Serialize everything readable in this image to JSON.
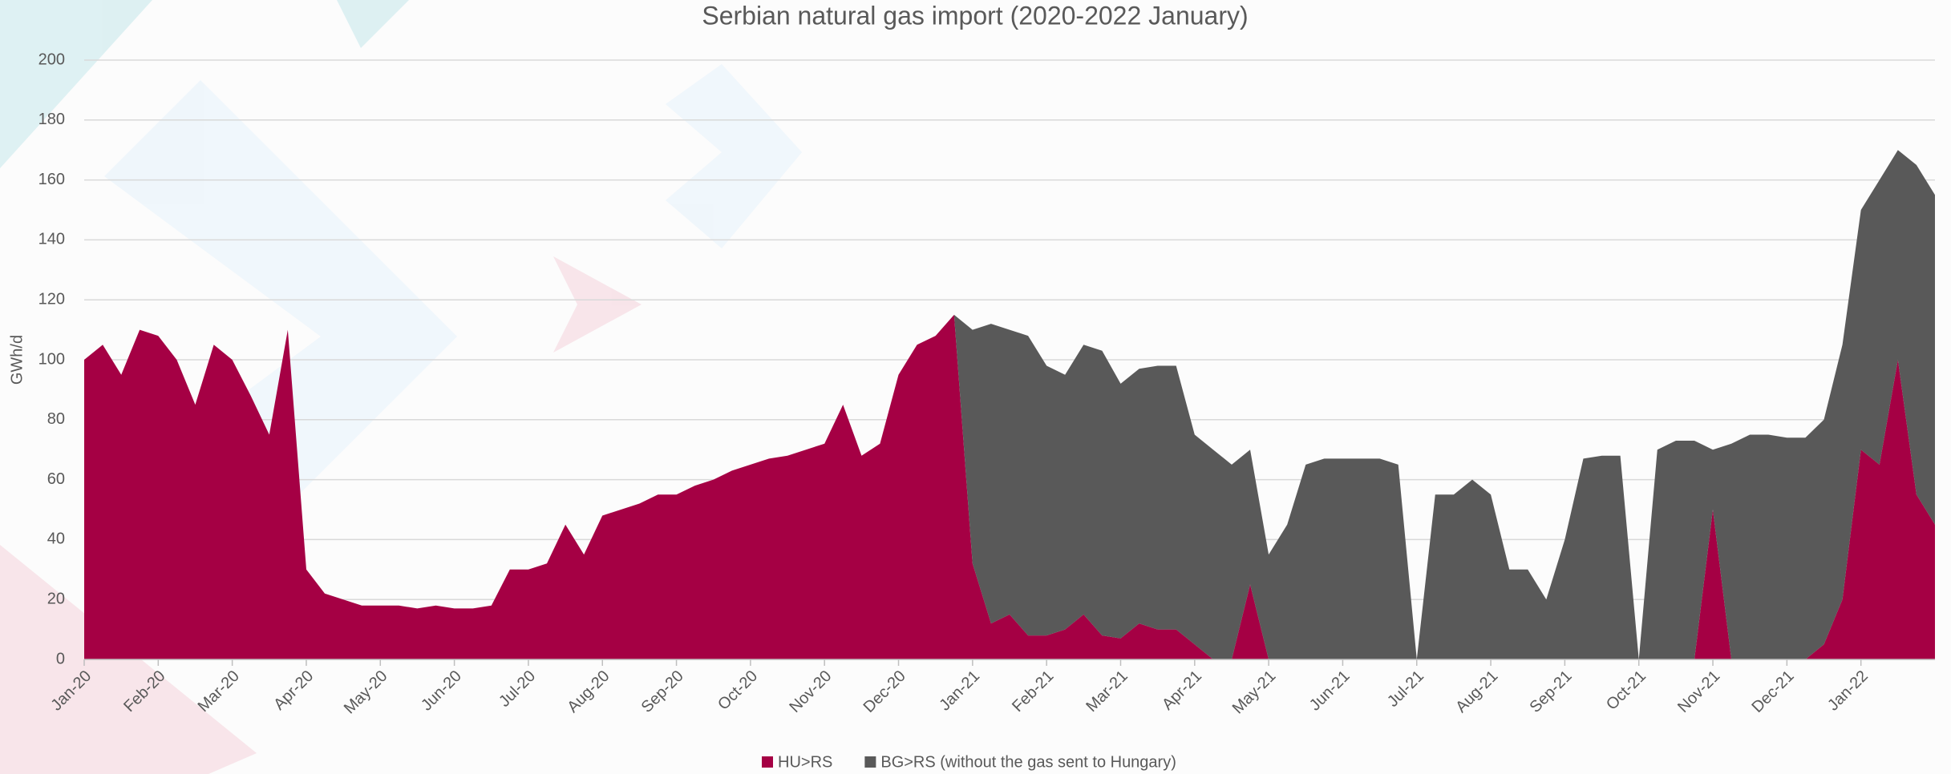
{
  "chart_data": {
    "type": "stacked_area",
    "title": "Serbian natural gas import (2020-2022 January)",
    "ylabel": "GWh/d",
    "categories": [
      "Jan-20",
      null,
      null,
      null,
      "Feb-20",
      null,
      null,
      null,
      "Mar-20",
      null,
      null,
      null,
      "Apr-20",
      null,
      null,
      null,
      "May-20",
      null,
      null,
      null,
      "Jun-20",
      null,
      null,
      null,
      "Jul-20",
      null,
      null,
      null,
      "Aug-20",
      null,
      null,
      null,
      "Sep-20",
      null,
      null,
      null,
      "Oct-20",
      null,
      null,
      null,
      "Nov-20",
      null,
      null,
      null,
      "Dec-20",
      null,
      null,
      null,
      "Jan-21",
      null,
      null,
      null,
      "Feb-21",
      null,
      null,
      null,
      "Mar-21",
      null,
      null,
      null,
      "Apr-21",
      null,
      null,
      null,
      "May-21",
      null,
      null,
      null,
      "Jun-21",
      null,
      null,
      null,
      "Jul-21",
      null,
      null,
      null,
      "Aug-21",
      null,
      null,
      null,
      "Sep-21",
      null,
      null,
      null,
      "Oct-21",
      null,
      null,
      null,
      "Nov-21",
      null,
      null,
      null,
      "Dec-21",
      null,
      null,
      null,
      "Jan-22",
      null,
      null,
      null,
      null
    ],
    "series": [
      {
        "name": "HU>RS",
        "color": "#a50044",
        "values": [
          100,
          105,
          95,
          110,
          108,
          100,
          85,
          105,
          100,
          88,
          75,
          110,
          30,
          22,
          20,
          18,
          18,
          18,
          17,
          18,
          17,
          17,
          18,
          30,
          30,
          32,
          45,
          35,
          48,
          50,
          52,
          55,
          55,
          58,
          60,
          63,
          65,
          67,
          68,
          70,
          72,
          85,
          68,
          72,
          95,
          105,
          108,
          115,
          32,
          12,
          15,
          8,
          8,
          10,
          15,
          8,
          7,
          12,
          10,
          10,
          5,
          0,
          0,
          25,
          0,
          0,
          0,
          0,
          0,
          0,
          0,
          0,
          0,
          0,
          0,
          0,
          0,
          0,
          0,
          0,
          0,
          0,
          0,
          0,
          0,
          0,
          0,
          0,
          50,
          0,
          0,
          0,
          0,
          0,
          5,
          20,
          70,
          65,
          100,
          55,
          45
        ]
      },
      {
        "name": "BG>RS (without the gas sent to Hungary)",
        "color": "#595959",
        "values": [
          0,
          0,
          0,
          0,
          0,
          0,
          0,
          0,
          0,
          0,
          0,
          0,
          0,
          0,
          0,
          0,
          0,
          0,
          0,
          0,
          0,
          0,
          0,
          0,
          0,
          0,
          0,
          0,
          0,
          0,
          0,
          0,
          0,
          0,
          0,
          0,
          0,
          0,
          0,
          0,
          0,
          0,
          0,
          0,
          0,
          0,
          0,
          0,
          78,
          100,
          95,
          100,
          90,
          85,
          90,
          95,
          85,
          85,
          88,
          88,
          70,
          70,
          65,
          45,
          35,
          45,
          65,
          67,
          67,
          67,
          67,
          65,
          0,
          55,
          55,
          60,
          55,
          30,
          30,
          20,
          40,
          67,
          68,
          68,
          0,
          70,
          73,
          73,
          20,
          72,
          75,
          75,
          74,
          74,
          75,
          85,
          80,
          95,
          70,
          110,
          110
        ]
      }
    ],
    "ylim": [
      0,
      200
    ],
    "yticks": [
      0,
      20,
      40,
      60,
      80,
      100,
      120,
      140,
      160,
      180,
      200
    ],
    "grid": true,
    "legend": "bottom"
  }
}
